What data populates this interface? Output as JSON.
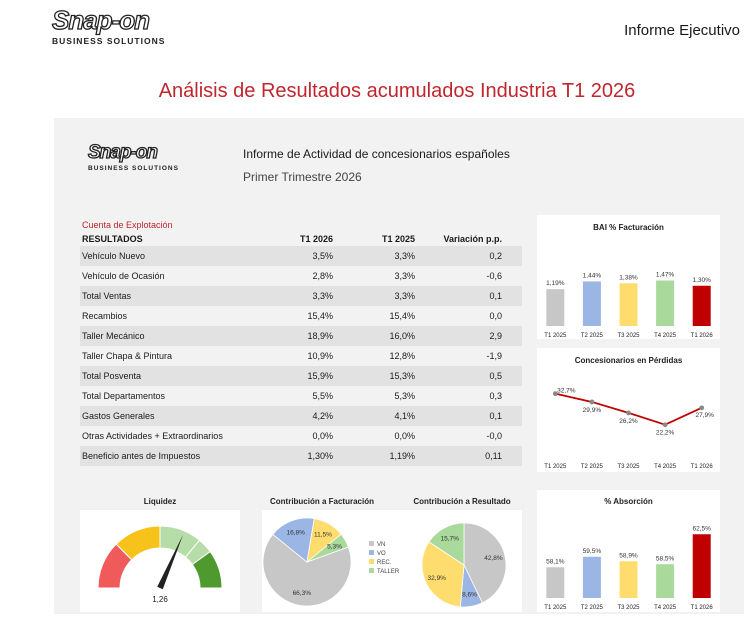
{
  "header": {
    "logo_main": "Snap-on",
    "logo_sub": "BUSINESS SOLUTIONS",
    "report_type": "Informe Ejecutivo",
    "main_title": "Análisis de Resultados acumulados Industria T1 2026"
  },
  "report": {
    "logo_main": "Snap-on",
    "logo_sub": "BUSINESS SOLUTIONS",
    "title": "Informe de Actividad de concesionarios españoles",
    "subtitle": "Primer Trimestre 2026"
  },
  "table": {
    "section_label": "Cuenta de Explotación",
    "headers": [
      "RESULTADOS",
      "T1 2026",
      "T1 2025",
      "Variación p.p."
    ],
    "rows": [
      [
        "Vehículo Nuevo",
        "3,5%",
        "3,3%",
        "0,2"
      ],
      [
        "Vehículo de Ocasión",
        "2,8%",
        "3,3%",
        "-0,6"
      ],
      [
        "Total Ventas",
        "3,3%",
        "3,3%",
        "0,1"
      ],
      [
        "Recambios",
        "15,4%",
        "15,4%",
        "0,0"
      ],
      [
        "Taller Mecánico",
        "18,9%",
        "16,0%",
        "2,9"
      ],
      [
        "Taller Chapa & Pintura",
        "10,9%",
        "12,8%",
        "-1,9"
      ],
      [
        "Total Posventa",
        "15,9%",
        "15,3%",
        "0,5"
      ],
      [
        "Total Departamentos",
        "5,5%",
        "5,3%",
        "0,3"
      ],
      [
        "Gastos Generales",
        "4,2%",
        "4,1%",
        "0,1"
      ],
      [
        "Otras Actividades + Extraordinarios",
        "0,0%",
        "0,0%",
        "-0,0"
      ],
      [
        "Beneficio antes de Impuestos",
        "1,30%",
        "1,19%",
        "0,11"
      ]
    ]
  },
  "colors": {
    "title_red": "#c0262d",
    "red_label": "#c0262d",
    "gray": "#c7c7c7",
    "blue": "#9bb5e4",
    "yellow": "#ffdc6e",
    "green": "#a9d99b",
    "red": "#c00000",
    "line": "#c00000"
  },
  "chart_data": [
    {
      "id": "bai",
      "type": "bar",
      "title": "BAI % Facturación",
      "categories": [
        "T1 2025",
        "T2 2025",
        "T3 2025",
        "T4 2025",
        "T1 2026"
      ],
      "values": [
        1.19,
        1.44,
        1.38,
        1.47,
        1.3
      ],
      "labels": [
        "1,19%",
        "1,44%",
        "1,38%",
        "1,47%",
        "1,30%"
      ],
      "bar_colors": [
        "gray",
        "blue",
        "yellow",
        "green",
        "red"
      ],
      "ylim": [
        0,
        2.1
      ]
    },
    {
      "id": "perdidas",
      "type": "line",
      "title": "Concesionarios en Pérdidas",
      "categories": [
        "T1 2025",
        "T2 2025",
        "T3 2025",
        "T4 2025",
        "T1 2026"
      ],
      "values": [
        32.7,
        29.9,
        26.2,
        22.2,
        27.9
      ],
      "labels": [
        "32,7%",
        "29,9%",
        "26,2%",
        "22,2%",
        "27,9%"
      ],
      "ylim": [
        15,
        38
      ]
    },
    {
      "id": "absorcion",
      "type": "bar",
      "title": "% Absorción",
      "categories": [
        "T1 2025",
        "T2 2025",
        "T3 2025",
        "T4 2025",
        "T1 2026"
      ],
      "values": [
        58.1,
        59.5,
        58.9,
        58.5,
        62.5
      ],
      "labels": [
        "58,1%",
        "59,5%",
        "58,9%",
        "58,5%",
        "62,5%"
      ],
      "bar_colors": [
        "gray",
        "blue",
        "yellow",
        "green",
        "red"
      ],
      "ylim": [
        54,
        64
      ]
    },
    {
      "id": "facturacion",
      "type": "pie",
      "title": "Contribución a Facturación",
      "slices": [
        {
          "name": "VN",
          "value": 66.3,
          "label": "66,3%"
        },
        {
          "name": "VO",
          "value": 16.8,
          "label": "16,8%"
        },
        {
          "name": "REC.",
          "value": 11.5,
          "label": "11,5%"
        },
        {
          "name": "TALLER",
          "value": 5.3,
          "label": "5,3%"
        }
      ]
    },
    {
      "id": "resultado",
      "type": "pie",
      "title": "Contribución a Resultado",
      "slices": [
        {
          "name": "VN",
          "value": 42.8,
          "label": "42,8%"
        },
        {
          "name": "VO",
          "value": 8.6,
          "label": "8,6%"
        },
        {
          "name": "REC.",
          "value": 32.9,
          "label": "32,9%"
        },
        {
          "name": "TALLER",
          "value": 15.7,
          "label": "15,7%"
        }
      ]
    },
    {
      "id": "liquidez",
      "type": "gauge",
      "title": "Liquidez",
      "value": 1.26,
      "value_label": "1,26",
      "range": [
        0,
        2
      ]
    }
  ],
  "legend": [
    "VN",
    "VO",
    "REC.",
    "TALLER"
  ]
}
